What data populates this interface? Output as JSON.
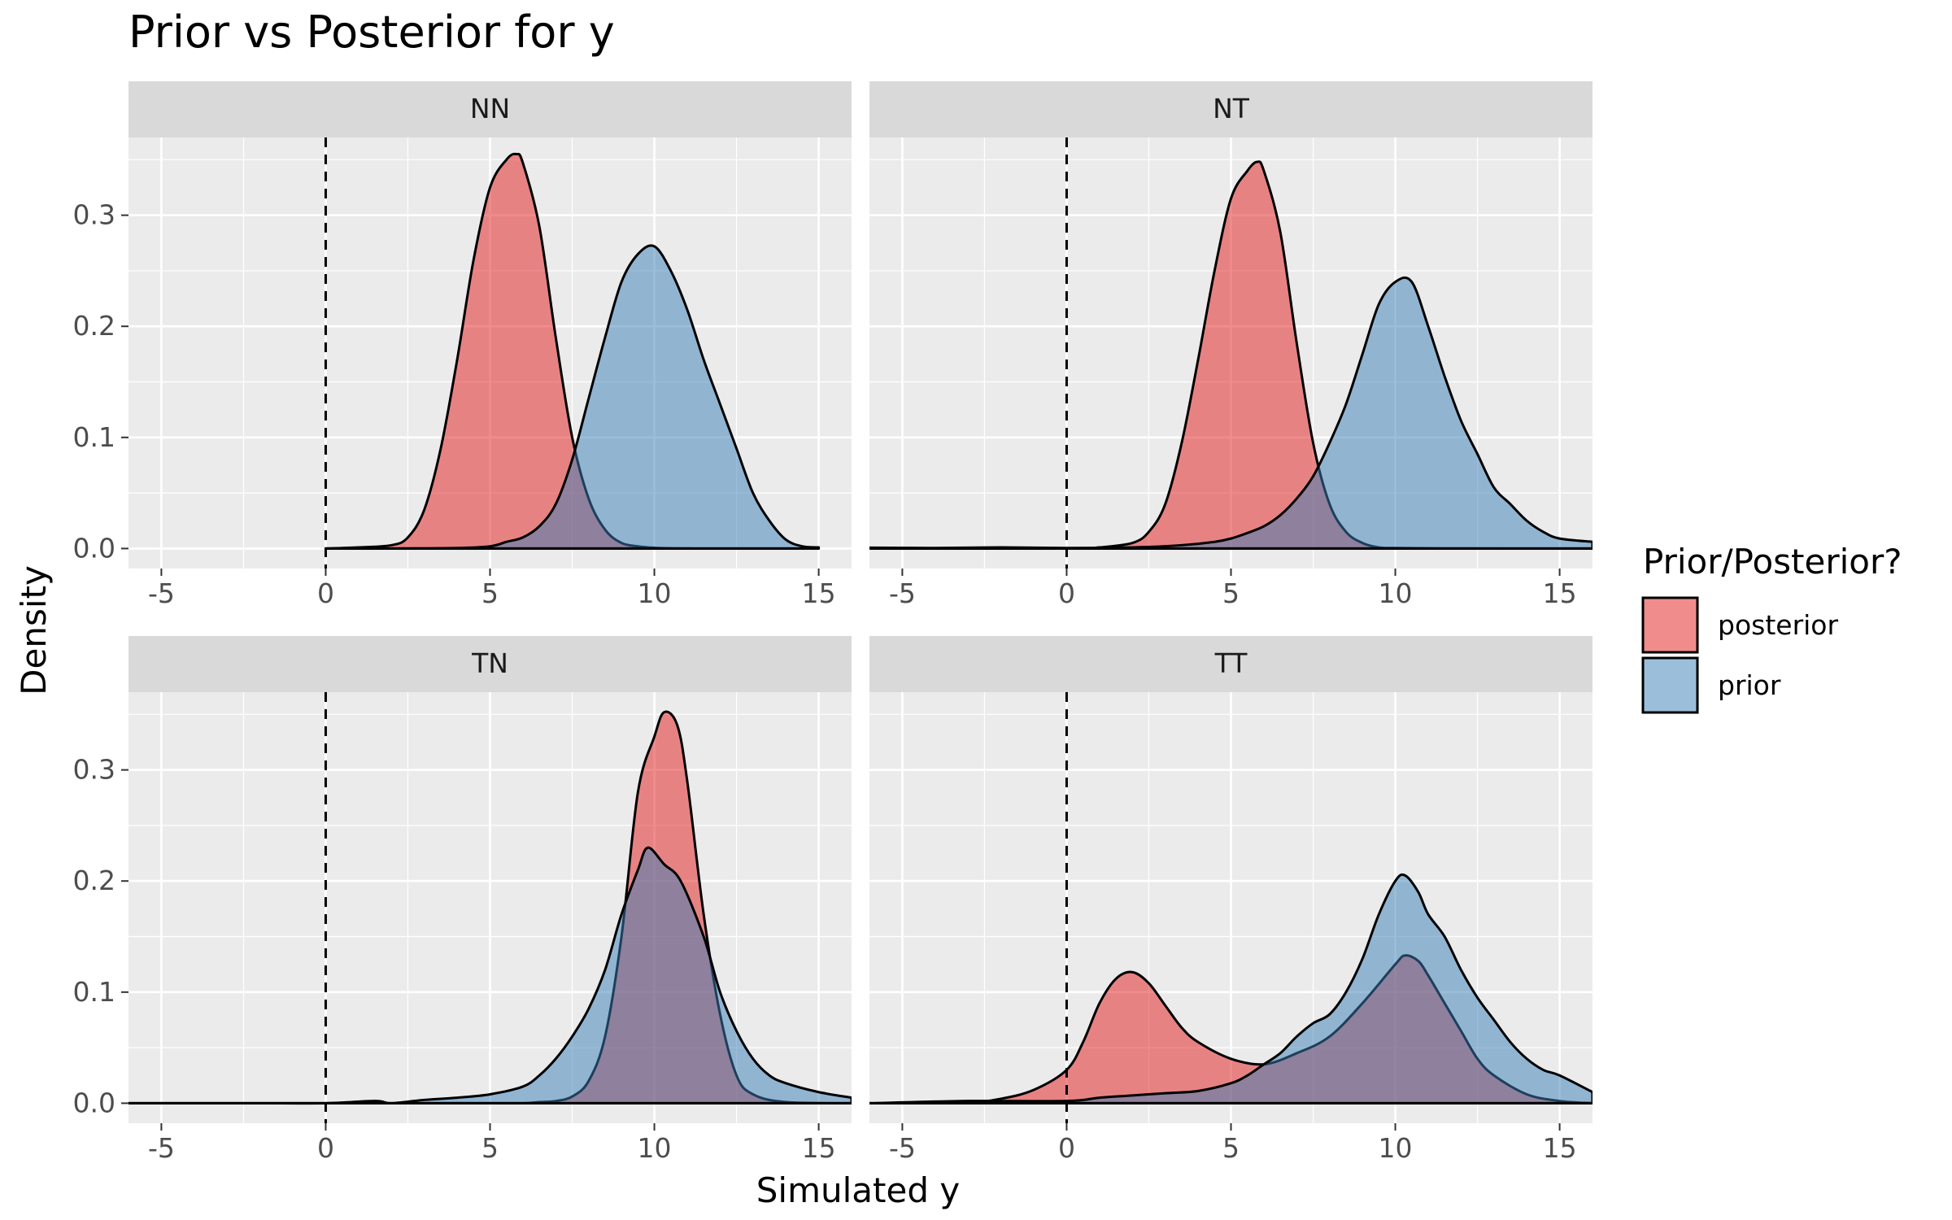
{
  "chart_data": {
    "type": "area",
    "title": "Prior vs Posterior for y",
    "xlabel": "Simulated y",
    "ylabel": "Density",
    "xlim": [
      -6,
      16
    ],
    "ylim": [
      -0.018,
      0.37
    ],
    "x_ticks": [
      -5,
      0,
      5,
      10,
      15
    ],
    "y_ticks": [
      0.0,
      0.1,
      0.2,
      0.3
    ],
    "x_tick_labels": [
      "-5",
      "0",
      "5",
      "10",
      "15"
    ],
    "y_tick_labels": [
      "0.0",
      "0.1",
      "0.2",
      "0.3"
    ],
    "reference_line": {
      "x": 0,
      "style": "dashed"
    },
    "grid": true,
    "legend": {
      "title": "Prior/Posterior?",
      "position": "right",
      "entries": [
        {
          "label": "posterior",
          "color": "#E41A1C"
        },
        {
          "label": "prior",
          "color": "#377EB8"
        }
      ]
    },
    "panels": [
      {
        "name": "NN",
        "x_min": 0,
        "x_max": 15,
        "series": [
          {
            "name": "posterior",
            "x": [
              0,
              1,
              2,
              2.5,
              3,
              3.5,
              4,
              4.5,
              5,
              5.5,
              5.8,
              6,
              6.5,
              7,
              7.5,
              8,
              8.5,
              9,
              9.5,
              10,
              10.5,
              11,
              11.5,
              12,
              13,
              14,
              15
            ],
            "y": [
              0,
              0.001,
              0.003,
              0.01,
              0.035,
              0.09,
              0.17,
              0.26,
              0.325,
              0.35,
              0.355,
              0.347,
              0.29,
              0.19,
              0.1,
              0.045,
              0.017,
              0.005,
              0.002,
              0.0007,
              0.0002,
              0.0001,
              0,
              0,
              0,
              0,
              0
            ]
          },
          {
            "name": "prior",
            "x": [
              0,
              2,
              4,
              5,
              5.5,
              6,
              6.5,
              7,
              7.5,
              8,
              8.5,
              9,
              9.5,
              10,
              10.5,
              11,
              11.5,
              12,
              12.5,
              13,
              13.5,
              14,
              14.5,
              15
            ],
            "y": [
              0,
              0,
              0.0005,
              0.002,
              0.006,
              0.01,
              0.02,
              0.04,
              0.08,
              0.135,
              0.19,
              0.24,
              0.265,
              0.272,
              0.25,
              0.215,
              0.17,
              0.13,
              0.09,
              0.05,
              0.025,
              0.008,
              0.002,
              0.001
            ]
          }
        ]
      },
      {
        "name": "NT",
        "x_min": -6,
        "x_max": 16,
        "series": [
          {
            "name": "posterior",
            "x": [
              -6,
              0,
              1,
              2,
              2.5,
              3,
              3.5,
              4,
              4.5,
              5,
              5.5,
              5.8,
              6,
              6.5,
              7,
              7.5,
              8,
              8.5,
              9,
              9.5,
              10,
              11,
              12,
              14,
              16
            ],
            "y": [
              0,
              0,
              0.001,
              0.005,
              0.015,
              0.04,
              0.095,
              0.17,
              0.25,
              0.315,
              0.34,
              0.348,
              0.34,
              0.285,
              0.185,
              0.095,
              0.04,
              0.015,
              0.005,
              0.001,
              0.0005,
              0.0002,
              0.0001,
              0,
              0
            ]
          },
          {
            "name": "prior",
            "x": [
              -6,
              -4,
              -2,
              0,
              2,
              3.5,
              4.5,
              5,
              5.5,
              6,
              6.5,
              7,
              7.5,
              8,
              8.5,
              9,
              9.5,
              10,
              10.5,
              11,
              11.5,
              12,
              12.5,
              13,
              13.5,
              14,
              14.5,
              15,
              16
            ],
            "y": [
              0.0008,
              0.0005,
              0.001,
              0.0005,
              0.001,
              0.003,
              0.006,
              0.009,
              0.014,
              0.02,
              0.03,
              0.045,
              0.065,
              0.095,
              0.13,
              0.175,
              0.22,
              0.24,
              0.24,
              0.2,
              0.155,
              0.115,
              0.085,
              0.055,
              0.04,
              0.025,
              0.015,
              0.009,
              0.006
            ]
          }
        ]
      },
      {
        "name": "TN",
        "x_min": -6,
        "x_max": 16,
        "series": [
          {
            "name": "posterior",
            "x": [
              -6,
              2,
              4,
              5,
              6,
              6.5,
              7,
              7.5,
              8,
              8.5,
              9,
              9.5,
              10,
              10.3,
              10.7,
              11,
              11.5,
              12,
              12.5,
              13,
              14,
              16
            ],
            "y": [
              0,
              0,
              0,
              0,
              0,
              0.001,
              0.002,
              0.006,
              0.02,
              0.06,
              0.15,
              0.28,
              0.33,
              0.352,
              0.34,
              0.29,
              0.17,
              0.08,
              0.025,
              0.008,
              0.001,
              0
            ]
          },
          {
            "name": "prior",
            "x": [
              -6,
              -4,
              -2,
              0,
              1.5,
              2,
              3,
              4,
              5,
              6,
              6.5,
              7,
              7.5,
              8,
              8.5,
              9,
              9.5,
              9.8,
              10.3,
              10.8,
              11.5,
              12,
              12.5,
              13,
              13.5,
              14,
              15,
              16
            ],
            "y": [
              0,
              0,
              0,
              0,
              0.002,
              0,
              0.003,
              0.005,
              0.008,
              0.015,
              0.025,
              0.04,
              0.06,
              0.085,
              0.12,
              0.17,
              0.21,
              0.23,
              0.215,
              0.2,
              0.15,
              0.1,
              0.065,
              0.04,
              0.025,
              0.018,
              0.01,
              0.005
            ]
          }
        ]
      },
      {
        "name": "TT",
        "x_min": -6,
        "x_max": 16,
        "series": [
          {
            "name": "posterior",
            "x": [
              -6,
              -3,
              -2,
              -1,
              0,
              0.5,
              1,
              1.5,
              2,
              2.5,
              3,
              3.5,
              4,
              5,
              6,
              7,
              8,
              9,
              10,
              10.3,
              10.7,
              11,
              11.5,
              12,
              12.5,
              13,
              14,
              15,
              16
            ],
            "y": [
              0,
              0.001,
              0.004,
              0.012,
              0.03,
              0.055,
              0.09,
              0.112,
              0.118,
              0.108,
              0.088,
              0.068,
              0.055,
              0.04,
              0.035,
              0.045,
              0.06,
              0.09,
              0.125,
              0.133,
              0.128,
              0.115,
              0.09,
              0.065,
              0.04,
              0.025,
              0.008,
              0.002,
              0
            ]
          },
          {
            "name": "prior",
            "x": [
              -6,
              -3,
              0,
              1,
              2,
              3,
              4,
              5,
              5.5,
              6,
              6.5,
              7,
              7.5,
              8,
              8.5,
              9,
              9.5,
              10,
              10.3,
              10.7,
              11,
              11.5,
              12,
              12.5,
              13,
              13.5,
              14,
              14.5,
              15,
              16
            ],
            "y": [
              0,
              0.002,
              0.002,
              0.005,
              0.007,
              0.009,
              0.011,
              0.018,
              0.025,
              0.035,
              0.045,
              0.06,
              0.072,
              0.08,
              0.1,
              0.13,
              0.17,
              0.2,
              0.205,
              0.19,
              0.17,
              0.15,
              0.12,
              0.095,
              0.075,
              0.055,
              0.04,
              0.03,
              0.025,
              0.01
            ]
          }
        ]
      }
    ]
  },
  "colors": {
    "posterior": "#E41A1C",
    "prior": "#377EB8",
    "panel_bg": "#EBEBEB",
    "strip_bg": "#D9D9D9",
    "grid": "#FFFFFF"
  }
}
